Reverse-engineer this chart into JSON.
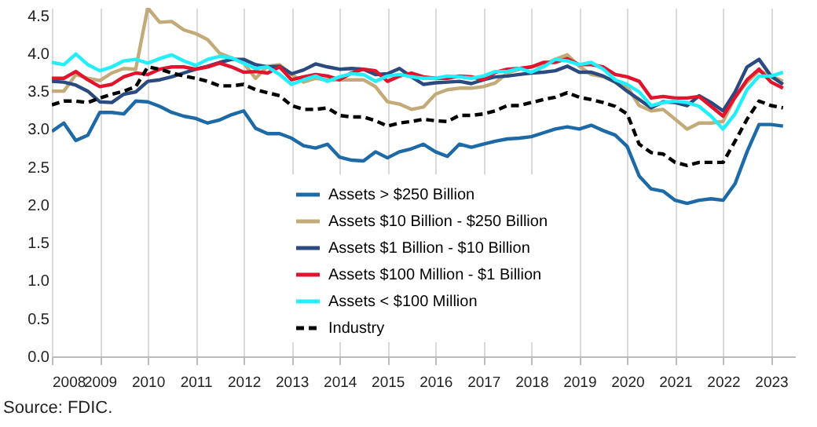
{
  "chart_data": {
    "type": "line",
    "x": [
      2008,
      2008.25,
      2008.5,
      2008.75,
      2009,
      2009.25,
      2009.5,
      2009.75,
      2010,
      2010.25,
      2010.5,
      2010.75,
      2011,
      2011.25,
      2011.5,
      2011.75,
      2012,
      2012.25,
      2012.5,
      2012.75,
      2013,
      2013.25,
      2013.5,
      2013.75,
      2014,
      2014.25,
      2014.5,
      2014.75,
      2015,
      2015.25,
      2015.5,
      2015.75,
      2016,
      2016.25,
      2016.5,
      2016.75,
      2017,
      2017.25,
      2017.5,
      2017.75,
      2018,
      2018.25,
      2018.5,
      2018.75,
      2019,
      2019.25,
      2019.5,
      2019.75,
      2020,
      2020.25,
      2020.5,
      2020.75,
      2021,
      2021.25,
      2021.5,
      2021.75,
      2022,
      2022.25,
      2022.5,
      2022.75,
      2023,
      2023.25
    ],
    "series": [
      {
        "name": "Assets > $250 Billion",
        "color": "#1d6aa6",
        "values": [
          2.97,
          3.08,
          2.85,
          2.92,
          3.22,
          3.22,
          3.2,
          3.37,
          3.36,
          3.3,
          3.22,
          3.17,
          3.14,
          3.08,
          3.12,
          3.19,
          3.24,
          3.01,
          2.94,
          2.94,
          2.88,
          2.78,
          2.75,
          2.8,
          2.63,
          2.59,
          2.58,
          2.7,
          2.62,
          2.7,
          2.74,
          2.8,
          2.7,
          2.64,
          2.8,
          2.76,
          2.8,
          2.84,
          2.87,
          2.88,
          2.9,
          2.95,
          3.0,
          3.03,
          3.0,
          3.05,
          2.98,
          2.92,
          2.77,
          2.38,
          2.21,
          2.18,
          2.06,
          2.02,
          2.06,
          2.08,
          2.06,
          2.28,
          2.7,
          3.06,
          3.06,
          3.04
        ]
      },
      {
        "name": "Assets  $10 Billion - $250 Billion",
        "color": "#c2ab78",
        "values": [
          3.5,
          3.5,
          3.72,
          3.67,
          3.64,
          3.74,
          3.8,
          3.79,
          4.6,
          4.41,
          4.42,
          4.31,
          4.26,
          4.18,
          4.0,
          3.94,
          3.87,
          3.67,
          3.83,
          3.85,
          3.72,
          3.62,
          3.67,
          3.65,
          3.65,
          3.65,
          3.65,
          3.56,
          3.36,
          3.33,
          3.26,
          3.29,
          3.46,
          3.52,
          3.54,
          3.54,
          3.56,
          3.61,
          3.74,
          3.79,
          3.82,
          3.85,
          3.92,
          3.98,
          3.83,
          3.72,
          3.69,
          3.62,
          3.56,
          3.31,
          3.24,
          3.26,
          3.13,
          3.0,
          3.08,
          3.08,
          3.1,
          3.42,
          3.62,
          3.77,
          3.7,
          3.63
        ]
      },
      {
        "name": "Assets  $1 Billion - $10 Billion",
        "color": "#2b4a80",
        "values": [
          3.63,
          3.62,
          3.58,
          3.5,
          3.36,
          3.35,
          3.46,
          3.49,
          3.63,
          3.65,
          3.69,
          3.74,
          3.79,
          3.83,
          3.88,
          3.92,
          3.92,
          3.85,
          3.82,
          3.83,
          3.73,
          3.78,
          3.86,
          3.82,
          3.79,
          3.8,
          3.79,
          3.72,
          3.73,
          3.8,
          3.69,
          3.59,
          3.61,
          3.62,
          3.63,
          3.6,
          3.65,
          3.69,
          3.7,
          3.72,
          3.74,
          3.75,
          3.77,
          3.83,
          3.75,
          3.75,
          3.7,
          3.62,
          3.5,
          3.39,
          3.28,
          3.36,
          3.35,
          3.31,
          3.44,
          3.35,
          3.24,
          3.49,
          3.82,
          3.92,
          3.7,
          3.59
        ]
      },
      {
        "name": "Assets  $100 Million - $1 Billion",
        "color": "#e0142d",
        "values": [
          3.67,
          3.67,
          3.76,
          3.65,
          3.56,
          3.59,
          3.69,
          3.74,
          3.72,
          3.79,
          3.82,
          3.82,
          3.79,
          3.82,
          3.87,
          3.82,
          3.75,
          3.76,
          3.74,
          3.82,
          3.65,
          3.69,
          3.72,
          3.7,
          3.65,
          3.74,
          3.79,
          3.77,
          3.63,
          3.7,
          3.74,
          3.69,
          3.67,
          3.67,
          3.7,
          3.69,
          3.65,
          3.75,
          3.79,
          3.8,
          3.82,
          3.88,
          3.88,
          3.93,
          3.85,
          3.85,
          3.82,
          3.72,
          3.69,
          3.63,
          3.41,
          3.43,
          3.41,
          3.41,
          3.43,
          3.3,
          3.17,
          3.42,
          3.65,
          3.79,
          3.62,
          3.54
        ]
      },
      {
        "name": "Assets < $100 Million",
        "color": "#22eeff",
        "values": [
          3.88,
          3.85,
          3.99,
          3.85,
          3.77,
          3.82,
          3.9,
          3.92,
          3.87,
          3.93,
          3.98,
          3.9,
          3.84,
          3.92,
          3.96,
          3.94,
          3.87,
          3.8,
          3.82,
          3.72,
          3.59,
          3.65,
          3.7,
          3.63,
          3.69,
          3.73,
          3.72,
          3.63,
          3.7,
          3.72,
          3.69,
          3.67,
          3.67,
          3.7,
          3.69,
          3.67,
          3.7,
          3.76,
          3.76,
          3.8,
          3.75,
          3.82,
          3.92,
          3.9,
          3.85,
          3.88,
          3.79,
          3.65,
          3.59,
          3.49,
          3.31,
          3.35,
          3.37,
          3.35,
          3.3,
          3.17,
          3.0,
          3.2,
          3.52,
          3.7,
          3.7,
          3.75
        ]
      },
      {
        "name": "Industry",
        "color": "#000000",
        "line_style": "dashed",
        "values": [
          3.32,
          3.37,
          3.37,
          3.35,
          3.41,
          3.46,
          3.5,
          3.56,
          3.82,
          3.79,
          3.74,
          3.7,
          3.67,
          3.63,
          3.57,
          3.57,
          3.59,
          3.52,
          3.48,
          3.44,
          3.31,
          3.26,
          3.26,
          3.28,
          3.18,
          3.16,
          3.16,
          3.11,
          3.04,
          3.08,
          3.1,
          3.13,
          3.11,
          3.1,
          3.18,
          3.18,
          3.2,
          3.24,
          3.31,
          3.31,
          3.35,
          3.39,
          3.42,
          3.48,
          3.42,
          3.39,
          3.35,
          3.3,
          3.2,
          2.8,
          2.69,
          2.67,
          2.56,
          2.52,
          2.56,
          2.56,
          2.56,
          2.84,
          3.13,
          3.37,
          3.31,
          3.28
        ]
      }
    ],
    "xlim": [
      2008,
      2023.5
    ],
    "xticks": [
      2008,
      2009,
      2010,
      2011,
      2012,
      2013,
      2014,
      2015,
      2016,
      2017,
      2018,
      2019,
      2020,
      2021,
      2022,
      2023
    ],
    "ylim": [
      0,
      4.6
    ],
    "yticks": [
      {
        "value": 0,
        "label": "0.0"
      },
      {
        "value": 0.5,
        "label": "0.5"
      },
      {
        "value": 1,
        "label": "1.0"
      },
      {
        "value": 1.5,
        "label": "1.5"
      },
      {
        "value": 2,
        "label": "2.0"
      },
      {
        "value": 2.5,
        "label": "2.5"
      },
      {
        "value": 3,
        "label": "3.0"
      },
      {
        "value": 3.5,
        "label": "3.5"
      },
      {
        "value": 4,
        "label": "4.0"
      },
      {
        "value": 4.5,
        "label": "4.5"
      }
    ],
    "grid": "x",
    "legend": "bottom",
    "line_style": "solid",
    "annotations": [
      "Source: FDIC."
    ]
  }
}
